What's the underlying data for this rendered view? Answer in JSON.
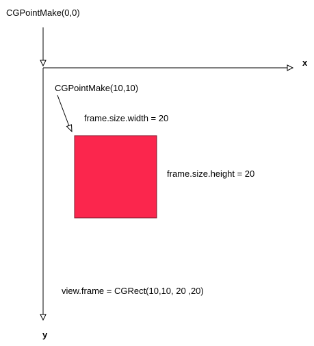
{
  "labels": {
    "origin": "CGPointMake(0,0)",
    "point": "CGPointMake(10,10)",
    "width": "frame.size.width = 20",
    "height": "frame.size.height = 20",
    "frame": "view.frame = CGRect(10,10, 20 ,20)",
    "x_axis": "x",
    "y_axis": "y"
  },
  "colors": {
    "rect_fill": "#FB264D",
    "rect_stroke": "#7a1a2c",
    "line": "#000000"
  }
}
